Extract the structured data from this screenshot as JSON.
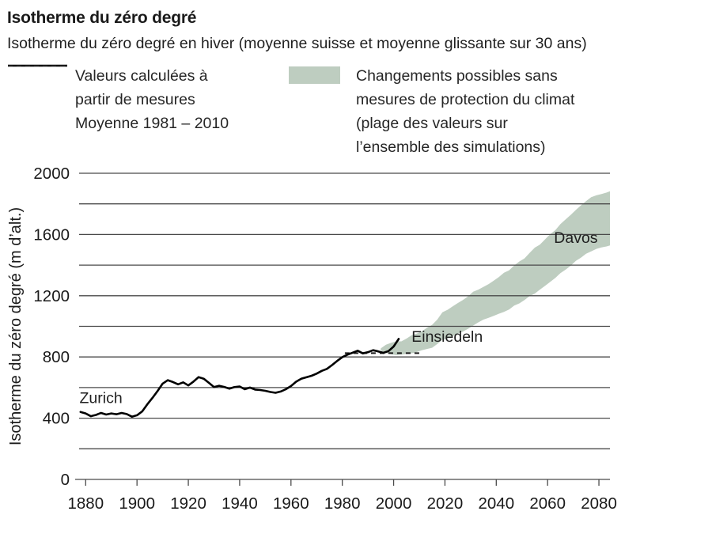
{
  "header": {
    "title": "Isotherme du zéro degré",
    "subtitle": "Isotherme du zéro degré en hiver (moyenne suisse et moyenne glissante sur 30 ans)"
  },
  "legend": {
    "measured": {
      "lines": [
        "Valeurs calculées à",
        "partir de mesures"
      ]
    },
    "mean": {
      "label": "Moyenne 1981 – 2010"
    },
    "band": {
      "lines": [
        "Changements possibles sans",
        "mesures de protection du climat",
        "(plage des valeurs sur",
        "l’ensemble des simulations)"
      ]
    }
  },
  "chart_data": {
    "type": "line",
    "title": "Isotherme du zéro degré en hiver (moyenne suisse et moyenne glissante sur 30 ans)",
    "xlabel": "",
    "ylabel": "Isotherme du zéro degré (m d’alt.)",
    "xlim": [
      1875.9,
      2084.3
    ],
    "ylim": [
      0,
      2000
    ],
    "grid_step": 200,
    "grid": true,
    "legend_position": "top",
    "x_ticks": [
      1880,
      1900,
      1920,
      1940,
      1960,
      1980,
      2000,
      2020,
      2040,
      2060,
      2080
    ],
    "y_ticks": [
      0,
      400,
      800,
      1200,
      1600,
      2000
    ],
    "colors": {
      "measured_line": "#000000",
      "mean_line": "#1a1a1a",
      "band": "#becdc0",
      "grid": "#4a4a4a",
      "text": "#1a1a1a"
    },
    "series": [
      {
        "name": "Valeurs calculées à partir de mesures",
        "type": "line",
        "points": [
          [
            1878,
            441
          ],
          [
            1880,
            431
          ],
          [
            1881,
            422
          ],
          [
            1882,
            413
          ],
          [
            1883,
            417
          ],
          [
            1884,
            421
          ],
          [
            1885,
            428
          ],
          [
            1886,
            434
          ],
          [
            1888,
            424
          ],
          [
            1890,
            431
          ],
          [
            1892,
            426
          ],
          [
            1894,
            434
          ],
          [
            1896,
            427
          ],
          [
            1898,
            410
          ],
          [
            1900,
            419
          ],
          [
            1902,
            444
          ],
          [
            1904,
            490
          ],
          [
            1906,
            532
          ],
          [
            1908,
            577
          ],
          [
            1910,
            626
          ],
          [
            1912,
            648
          ],
          [
            1914,
            636
          ],
          [
            1916,
            621
          ],
          [
            1918,
            634
          ],
          [
            1920,
            614
          ],
          [
            1922,
            639
          ],
          [
            1924,
            668
          ],
          [
            1926,
            658
          ],
          [
            1928,
            631
          ],
          [
            1930,
            603
          ],
          [
            1932,
            612
          ],
          [
            1934,
            604
          ],
          [
            1936,
            593
          ],
          [
            1938,
            603
          ],
          [
            1940,
            607
          ],
          [
            1942,
            589
          ],
          [
            1944,
            600
          ],
          [
            1946,
            587
          ],
          [
            1948,
            584
          ],
          [
            1950,
            579
          ],
          [
            1952,
            571
          ],
          [
            1954,
            566
          ],
          [
            1956,
            574
          ],
          [
            1958,
            589
          ],
          [
            1960,
            610
          ],
          [
            1962,
            638
          ],
          [
            1964,
            658
          ],
          [
            1966,
            667
          ],
          [
            1968,
            677
          ],
          [
            1970,
            691
          ],
          [
            1972,
            709
          ],
          [
            1974,
            722
          ],
          [
            1976,
            747
          ],
          [
            1978,
            774
          ],
          [
            1980,
            799
          ],
          [
            1982,
            815
          ],
          [
            1984,
            828
          ],
          [
            1986,
            841
          ],
          [
            1988,
            823
          ],
          [
            1990,
            831
          ],
          [
            1992,
            844
          ],
          [
            1994,
            836
          ],
          [
            1996,
            827
          ],
          [
            1998,
            838
          ],
          [
            2000,
            868
          ],
          [
            2002,
            918
          ]
        ]
      },
      {
        "name": "Moyenne 1981 – 2010",
        "type": "reference-line",
        "value": 825,
        "x_from": 1981,
        "x_to": 2010
      },
      {
        "name": "Changements possibles sans mesures de protection du climat (plage des valeurs sur l’ensemble des simulations)",
        "type": "band",
        "points": [
          [
            1995,
            842,
            856
          ],
          [
            1997,
            826,
            880
          ],
          [
            1999,
            818,
            892
          ],
          [
            2001,
            812,
            902
          ],
          [
            2003,
            815,
            902
          ],
          [
            2005,
            820,
            920
          ],
          [
            2007,
            824,
            942
          ],
          [
            2009,
            832,
            952
          ],
          [
            2011,
            844,
            968
          ],
          [
            2013,
            852,
            990
          ],
          [
            2015,
            860,
            1010
          ],
          [
            2017,
            884,
            1044
          ],
          [
            2019,
            912,
            1092
          ],
          [
            2021,
            920,
            1108
          ],
          [
            2023,
            936,
            1130
          ],
          [
            2025,
            952,
            1152
          ],
          [
            2027,
            966,
            1172
          ],
          [
            2029,
            984,
            1196
          ],
          [
            2031,
            1005,
            1226
          ],
          [
            2033,
            1026,
            1240
          ],
          [
            2035,
            1044,
            1258
          ],
          [
            2037,
            1056,
            1276
          ],
          [
            2039,
            1068,
            1298
          ],
          [
            2041,
            1082,
            1322
          ],
          [
            2043,
            1094,
            1350
          ],
          [
            2045,
            1110,
            1366
          ],
          [
            2047,
            1136,
            1398
          ],
          [
            2049,
            1150,
            1424
          ],
          [
            2051,
            1172,
            1444
          ],
          [
            2053,
            1198,
            1480
          ],
          [
            2055,
            1214,
            1514
          ],
          [
            2057,
            1240,
            1534
          ],
          [
            2059,
            1264,
            1568
          ],
          [
            2061,
            1290,
            1602
          ],
          [
            2063,
            1316,
            1628
          ],
          [
            2065,
            1348,
            1668
          ],
          [
            2067,
            1370,
            1698
          ],
          [
            2069,
            1396,
            1728
          ],
          [
            2071,
            1428,
            1760
          ],
          [
            2073,
            1448,
            1790
          ],
          [
            2075,
            1474,
            1818
          ],
          [
            2077,
            1490,
            1844
          ],
          [
            2079,
            1506,
            1856
          ],
          [
            2081,
            1516,
            1864
          ],
          [
            2083,
            1522,
            1874
          ],
          [
            2084.3,
            1528,
            1882
          ]
        ]
      }
    ],
    "annotations": [
      {
        "label": "Zurich",
        "year": 1877.6,
        "value": 500
      },
      {
        "label": "Einsiedeln",
        "year": 2007.0,
        "value": 900
      },
      {
        "label": "Davos",
        "year": 2062.5,
        "value": 1545
      }
    ]
  }
}
